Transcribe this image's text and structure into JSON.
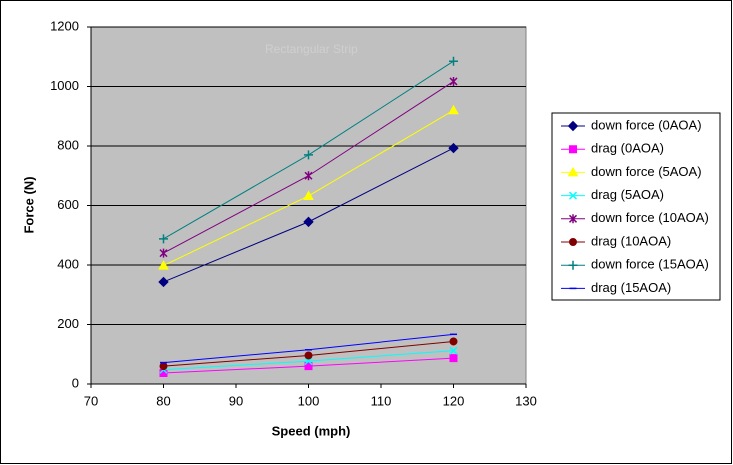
{
  "chart_data": {
    "type": "line",
    "x_label": "Speed (mph)",
    "y_label": "Force (N)",
    "watermark": "Rectangular Strip",
    "x": [
      80,
      100,
      120
    ],
    "xlim": [
      70,
      130
    ],
    "xticks": [
      70,
      80,
      90,
      100,
      110,
      120,
      130
    ],
    "ylim": [
      0,
      1200
    ],
    "yticks": [
      0,
      200,
      400,
      600,
      800,
      1000,
      1200
    ],
    "grid": true,
    "legend": "right",
    "series": [
      {
        "name": "down force (0AOA)",
        "color": "#000080",
        "marker": "diamond",
        "values": [
          343,
          545,
          793
        ]
      },
      {
        "name": "drag (0AOA)",
        "color": "#ff00ff",
        "marker": "square",
        "values": [
          37,
          60,
          87
        ]
      },
      {
        "name": "down force (5AOA)",
        "color": "#ffff00",
        "marker": "triangle",
        "values": [
          398,
          632,
          920
        ]
      },
      {
        "name": "drag (5AOA)",
        "color": "#00ffff",
        "marker": "x",
        "values": [
          48,
          77,
          112
        ]
      },
      {
        "name": "down force (10AOA)",
        "color": "#800080",
        "marker": "star",
        "values": [
          440,
          700,
          1017
        ]
      },
      {
        "name": "drag (10AOA)",
        "color": "#800000",
        "marker": "circle",
        "values": [
          60,
          96,
          143
        ]
      },
      {
        "name": "down force (15AOA)",
        "color": "#008080",
        "marker": "plus",
        "values": [
          488,
          770,
          1085
        ]
      },
      {
        "name": "drag (15AOA)",
        "color": "#0000ff",
        "marker": "dash",
        "values": [
          72,
          115,
          167
        ]
      }
    ]
  }
}
